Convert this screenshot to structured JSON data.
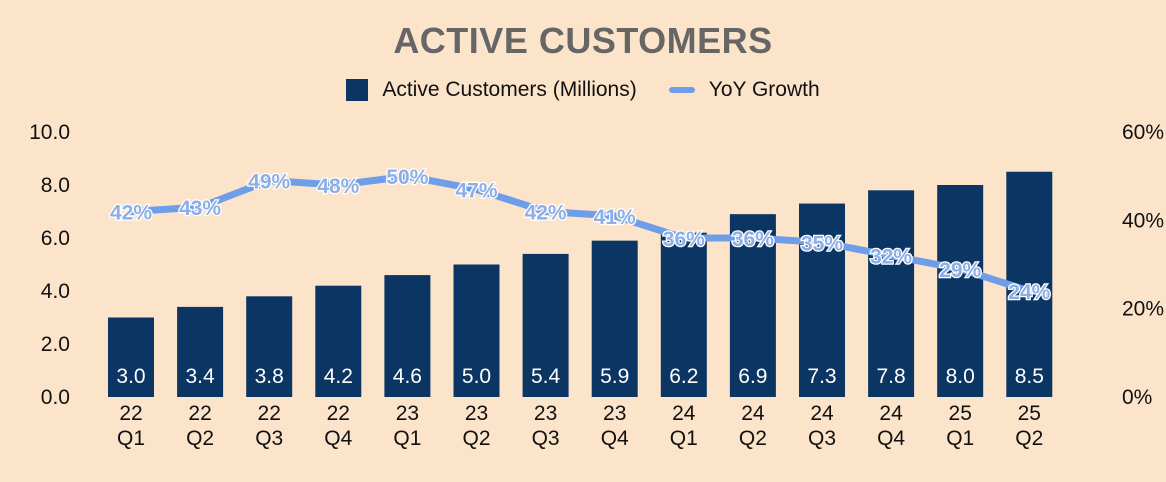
{
  "chart_data": {
    "type": "bar+line",
    "title": "ACTIVE CUSTOMERS",
    "categories": [
      [
        "22",
        "Q1"
      ],
      [
        "22",
        "Q2"
      ],
      [
        "22",
        "Q3"
      ],
      [
        "22",
        "Q4"
      ],
      [
        "23",
        "Q1"
      ],
      [
        "23",
        "Q2"
      ],
      [
        "23",
        "Q3"
      ],
      [
        "23",
        "Q4"
      ],
      [
        "24",
        "Q1"
      ],
      [
        "24",
        "Q2"
      ],
      [
        "24",
        "Q3"
      ],
      [
        "24",
        "Q4"
      ],
      [
        "25",
        "Q1"
      ],
      [
        "25",
        "Q2"
      ]
    ],
    "series": [
      {
        "name": "Active Customers (Millions)",
        "type": "bar",
        "axis": "left",
        "color": "#0b3562",
        "values": [
          3.0,
          3.4,
          3.8,
          4.2,
          4.6,
          5.0,
          5.4,
          5.9,
          6.2,
          6.9,
          7.3,
          7.8,
          8.0,
          8.5
        ],
        "labels": [
          "3.0",
          "3.4",
          "3.8",
          "4.2",
          "4.6",
          "5.0",
          "5.4",
          "5.9",
          "6.2",
          "6.9",
          "7.3",
          "7.8",
          "8.0",
          "8.5"
        ]
      },
      {
        "name": "YoY Growth",
        "type": "line",
        "axis": "right",
        "color": "#6f9ee8",
        "values": [
          42,
          43,
          49,
          48,
          50,
          47,
          42,
          41,
          36,
          36,
          35,
          32,
          29,
          24
        ],
        "labels": [
          "42%",
          "43%",
          "49%",
          "48%",
          "50%",
          "47%",
          "42%",
          "41%",
          "36%",
          "36%",
          "35%",
          "32%",
          "29%",
          "24%"
        ]
      }
    ],
    "y_left": {
      "range": [
        0,
        10
      ],
      "ticks": [
        "0.0",
        "2.0",
        "4.0",
        "6.0",
        "8.0",
        "10.0"
      ]
    },
    "y_right": {
      "range": [
        0,
        60
      ],
      "ticks": [
        "0%",
        "20%",
        "40%",
        "60%"
      ]
    },
    "legend_position": "top-center",
    "grid": false
  }
}
